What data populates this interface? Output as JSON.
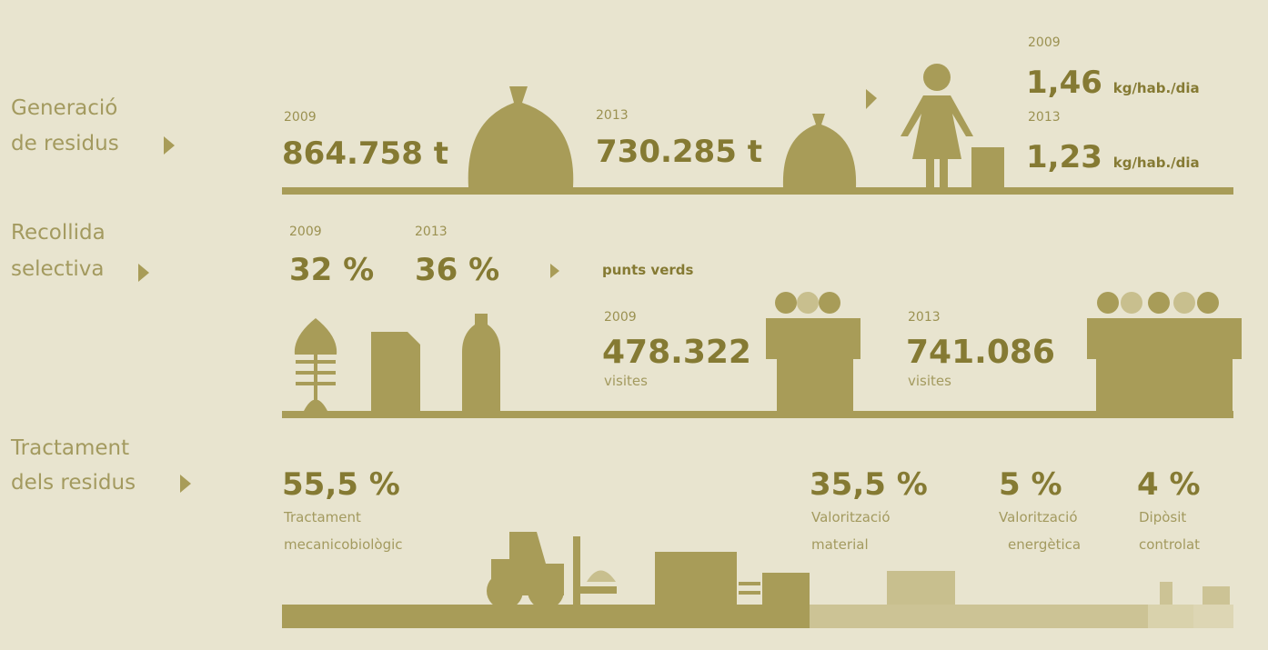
{
  "sections": [
    {
      "label": [
        "Generació",
        "de residus"
      ],
      "totals": [
        {
          "year": "2009",
          "value": "864.758 t"
        },
        {
          "year": "2013",
          "value": "730.285 t"
        }
      ],
      "per_capita": [
        {
          "year": "2009",
          "value": "1,46",
          "unit": "kg/hab./dia"
        },
        {
          "year": "2013",
          "value": "1,23",
          "unit": "kg/hab./dia"
        }
      ]
    },
    {
      "label": [
        "Recollida",
        "selectiva"
      ],
      "rates": [
        {
          "year": "2009",
          "value": "32 %"
        },
        {
          "year": "2013",
          "value": "36 %"
        }
      ],
      "points_title": "punts verds",
      "visits": [
        {
          "year": "2009",
          "value": "478.322",
          "unit": "visites"
        },
        {
          "year": "2013",
          "value": "741.086",
          "unit": "visites"
        }
      ]
    },
    {
      "label": [
        "Tractament",
        "dels residus"
      ],
      "shares": [
        {
          "value": "55,5 %",
          "label": [
            "Tractament",
            "mecanicobiològic"
          ]
        },
        {
          "value": "35,5 %",
          "label": [
            "Valorització",
            "material"
          ]
        },
        {
          "value": "5 %",
          "label": [
            "Valorització",
            "energètica"
          ]
        },
        {
          "value": "4 %",
          "label": [
            "Dipòsit",
            "controlat"
          ]
        }
      ]
    }
  ]
}
